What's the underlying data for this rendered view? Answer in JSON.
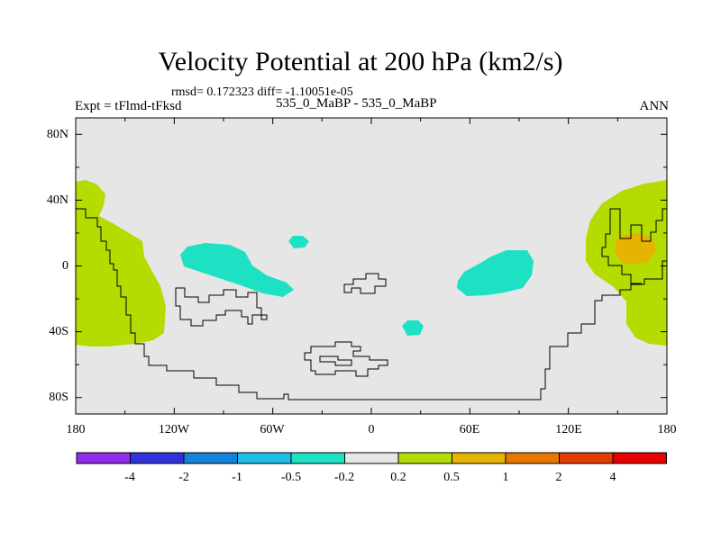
{
  "title": "Velocity Potential at 200 hPa (km2/s)",
  "stats": "rmsd= 0.172323 diff= -1.10051e-05",
  "expt_label": "Expt = tFlmd-tFksd",
  "center_label": "535_0_MaBP - 535_0_MaBP",
  "season": "ANN",
  "map": {
    "projection": "cylindrical-equidistant",
    "lon_range": [
      -180,
      180
    ],
    "lat_range": [
      -90,
      90
    ],
    "background_color": "#e6e6e6",
    "lat_tick_labels": [
      "80N",
      "40N",
      "0",
      "40S",
      "80S"
    ],
    "lon_tick_labels": [
      "180",
      "120W",
      "60W",
      "0",
      "60E",
      "120E",
      "180"
    ]
  },
  "colorbar": {
    "colors": [
      "#8e2dea",
      "#3232dd",
      "#1482d8",
      "#1ebee6",
      "#1ee1c3",
      "#e6e6e6",
      "#b4dc00",
      "#e6b400",
      "#e67800",
      "#e63c00",
      "#e60000"
    ],
    "labels": [
      "-4",
      "-2",
      "-1",
      "-0.5",
      "-0.2",
      "0.2",
      "0.5",
      "1",
      "2",
      "4"
    ]
  },
  "regions": [
    {
      "name": "west-pacific-positive",
      "level": "0.5",
      "color": "#b4dc00"
    },
    {
      "name": "east-pacific-positive",
      "level": "0.5",
      "color": "#b4dc00"
    },
    {
      "name": "pacific-max",
      "level": "1",
      "color": "#e6b400"
    },
    {
      "name": "atlantic-negative",
      "level": "-0.2",
      "color": "#1ee1c3"
    },
    {
      "name": "africa-negative",
      "level": "-0.2",
      "color": "#1ee1c3"
    }
  ]
}
